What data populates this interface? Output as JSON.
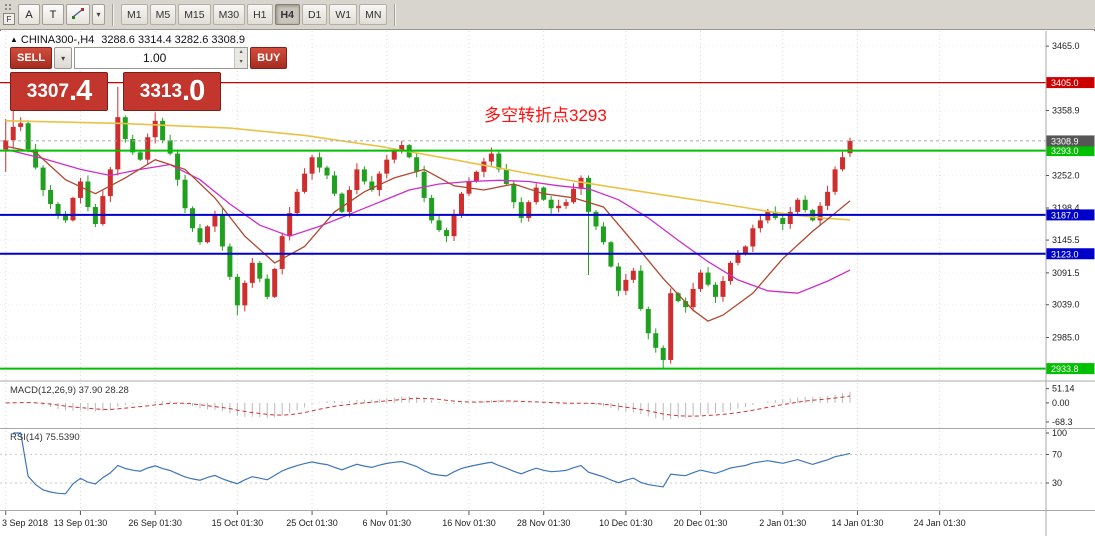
{
  "toolbar": {
    "file_badge": "F",
    "tool_buttons": [
      {
        "label": "A"
      },
      {
        "label": "T"
      }
    ],
    "draw_caret": "▾",
    "timeframes": [
      {
        "label": "M1"
      },
      {
        "label": "M5"
      },
      {
        "label": "M15"
      },
      {
        "label": "M30"
      },
      {
        "label": "H1"
      },
      {
        "label": "H4",
        "active": true
      },
      {
        "label": "D1"
      },
      {
        "label": "W1"
      },
      {
        "label": "MN"
      }
    ]
  },
  "header": {
    "arrow": "▲",
    "symbol_period": "CHINA300-,H4",
    "ohlc": "3288.6 3314.4 3282.6 3308.9"
  },
  "trade_panel": {
    "sell": "SELL",
    "buy": "BUY",
    "volume": "1.00",
    "dropdown": "▾",
    "sell_big": "3307",
    "sell_dec": ".4",
    "buy_big": "3313",
    "buy_dec": ".0"
  },
  "annotation": {
    "text": "多空转折点3293"
  },
  "colors": {
    "up": "#cf2e2e",
    "down": "#1fa11f",
    "annotation": "#ff1010",
    "line_red": "#cc0000",
    "line_green": "#00c000",
    "line_blue": "#0000cc",
    "axis_text": "#1c1c1c",
    "macd_hist": "#b9b9b9",
    "macd_signal": "#d03434",
    "rsi_line": "#3f76b9",
    "ma_yellow": "#e9c348",
    "ma_magenta": "#cc2ecc",
    "ma_brown": "#b0482f"
  },
  "chart_data": {
    "type": "candlestick",
    "symbol": "CHINA300-",
    "timeframe": "H4",
    "ohlc_current": {
      "open": 3288.6,
      "high": 3314.4,
      "low": 3282.6,
      "close": 3308.9
    },
    "price_range": [
      2915,
      3490
    ],
    "num_slots": 140,
    "open_first": 3295,
    "closes": [
      3310,
      3332,
      3338,
      3295,
      3265,
      3228,
      3205,
      3186,
      3178,
      3215,
      3242,
      3200,
      3172,
      3218,
      3262,
      3348,
      3312,
      3290,
      3278,
      3315,
      3342,
      3310,
      3288,
      3245,
      3198,
      3165,
      3142,
      3168,
      3188,
      3135,
      3085,
      3038,
      3075,
      3108,
      3082,
      3052,
      3098,
      3152,
      3190,
      3225,
      3255,
      3282,
      3265,
      3252,
      3222,
      3192,
      3228,
      3262,
      3242,
      3228,
      3255,
      3278,
      3292,
      3302,
      3282,
      3258,
      3215,
      3178,
      3162,
      3152,
      3188,
      3222,
      3242,
      3258,
      3275,
      3288,
      3262,
      3238,
      3208,
      3182,
      3208,
      3232,
      3212,
      3198,
      3202,
      3208,
      3230,
      3248,
      3192,
      3168,
      3142,
      3102,
      3062,
      3080,
      3095,
      3032,
      2992,
      2968,
      2948,
      3058,
      3045,
      3035,
      3065,
      3092,
      3072,
      3052,
      3078,
      3108,
      3122,
      3135,
      3165,
      3178,
      3192,
      3182,
      3172,
      3192,
      3212,
      3195,
      3178,
      3202,
      3225,
      3262,
      3282,
      3308.9
    ],
    "specials": {
      "0": [
        3295,
        3345,
        3258,
        3310
      ],
      "1": [
        3310,
        3368,
        3296,
        3332
      ],
      "15": [
        3262,
        3398,
        3252,
        3348
      ],
      "20": [
        3315,
        3356,
        3305,
        3342
      ],
      "31": [
        3085,
        3090,
        3022,
        3038
      ],
      "78": [
        3248,
        3252,
        3088,
        3192
      ],
      "88": [
        2968,
        2972,
        2933.8,
        2948
      ],
      "89": [
        2948,
        3066,
        2942,
        3058
      ],
      "113": [
        3288.6,
        3314.4,
        3282.6,
        3308.9
      ]
    },
    "y_ticks": [
      {
        "v": 3465.0,
        "t": "3465.0"
      },
      {
        "v": 3358.9,
        "t": "3358.9"
      },
      {
        "v": 3252.0,
        "t": "3252.0"
      },
      {
        "v": 3198.4,
        "t": "3198.4"
      },
      {
        "v": 3145.5,
        "t": "3145.5"
      },
      {
        "v": 3091.5,
        "t": "3091.5"
      },
      {
        "v": 3039.0,
        "t": "3039.0"
      },
      {
        "v": 2985.0,
        "t": "2985.0"
      }
    ],
    "x_ticks": [
      {
        "s": 0,
        "t": "3 Sep 2018"
      },
      {
        "s": 10,
        "t": "13 Sep 01:30"
      },
      {
        "s": 20,
        "t": "26 Sep 01:30"
      },
      {
        "s": 31,
        "t": "15 Oct 01:30"
      },
      {
        "s": 41,
        "t": "25 Oct 01:30"
      },
      {
        "s": 51,
        "t": "6 Nov 01:30"
      },
      {
        "s": 62,
        "t": "16 Nov 01:30"
      },
      {
        "s": 72,
        "t": "28 Nov 01:30"
      },
      {
        "s": 83,
        "t": "10 Dec 01:30"
      },
      {
        "s": 93,
        "t": "20 Dec 01:30"
      },
      {
        "s": 104,
        "t": "2 Jan 01:30"
      },
      {
        "s": 114,
        "t": "14 Jan 01:30"
      },
      {
        "s": 125,
        "t": "24 Jan 01:30"
      }
    ],
    "hlines": [
      {
        "price": 3405.0,
        "label": "3405.0",
        "color": "#cc0000",
        "width": 1.2
      },
      {
        "price": 3293.0,
        "label": "3293.0",
        "color": "#00c000",
        "width": 2
      },
      {
        "price": 3187.0,
        "label": "3187.0",
        "color": "#0000cc",
        "width": 2
      },
      {
        "price": 3123.0,
        "label": "3123.0",
        "color": "#0000cc",
        "width": 2
      },
      {
        "price": 2933.8,
        "label": "2933.8",
        "color": "#00c000",
        "width": 2
      }
    ],
    "current_price": {
      "value": 3308.9,
      "label": "3308.9",
      "tag_color": "#565656"
    },
    "moving_averages": [
      {
        "name": "ma-slow-yellow",
        "color": "#e9c348",
        "width": 1.6,
        "points": [
          [
            0,
            3342
          ],
          [
            15,
            3338
          ],
          [
            30,
            3330
          ],
          [
            40,
            3318
          ],
          [
            50,
            3300
          ],
          [
            60,
            3278
          ],
          [
            70,
            3255
          ],
          [
            80,
            3235
          ],
          [
            88,
            3220
          ],
          [
            96,
            3205
          ],
          [
            102,
            3193
          ],
          [
            106,
            3186
          ],
          [
            110,
            3181
          ],
          [
            113,
            3179
          ]
        ]
      },
      {
        "name": "ma-mid-magenta",
        "color": "#cc2ecc",
        "width": 1.3,
        "points": [
          [
            0,
            3295
          ],
          [
            5,
            3280
          ],
          [
            10,
            3262
          ],
          [
            14,
            3252
          ],
          [
            18,
            3262
          ],
          [
            22,
            3270
          ],
          [
            26,
            3245
          ],
          [
            30,
            3205
          ],
          [
            34,
            3170
          ],
          [
            38,
            3152
          ],
          [
            42,
            3168
          ],
          [
            46,
            3188
          ],
          [
            50,
            3208
          ],
          [
            54,
            3228
          ],
          [
            58,
            3238
          ],
          [
            62,
            3242
          ],
          [
            66,
            3244
          ],
          [
            70,
            3242
          ],
          [
            74,
            3235
          ],
          [
            78,
            3230
          ],
          [
            82,
            3212
          ],
          [
            86,
            3182
          ],
          [
            90,
            3145
          ],
          [
            94,
            3110
          ],
          [
            98,
            3080
          ],
          [
            102,
            3062
          ],
          [
            106,
            3058
          ],
          [
            110,
            3078
          ],
          [
            113,
            3096
          ]
        ]
      },
      {
        "name": "ma-fast-brown",
        "color": "#b0482f",
        "width": 1.3,
        "points": [
          [
            0,
            3300
          ],
          [
            4,
            3290
          ],
          [
            8,
            3245
          ],
          [
            12,
            3222
          ],
          [
            16,
            3248
          ],
          [
            20,
            3278
          ],
          [
            24,
            3262
          ],
          [
            28,
            3215
          ],
          [
            32,
            3152
          ],
          [
            36,
            3108
          ],
          [
            40,
            3135
          ],
          [
            44,
            3192
          ],
          [
            48,
            3225
          ],
          [
            52,
            3248
          ],
          [
            56,
            3262
          ],
          [
            60,
            3235
          ],
          [
            64,
            3228
          ],
          [
            68,
            3238
          ],
          [
            72,
            3222
          ],
          [
            76,
            3215
          ],
          [
            80,
            3200
          ],
          [
            84,
            3142
          ],
          [
            88,
            3082
          ],
          [
            92,
            3030
          ],
          [
            94,
            3012
          ],
          [
            96,
            3022
          ],
          [
            100,
            3058
          ],
          [
            104,
            3115
          ],
          [
            108,
            3160
          ],
          [
            111,
            3190
          ],
          [
            113,
            3210
          ]
        ]
      }
    ],
    "indicators": [
      {
        "name": "MACD",
        "label": "MACD(12,26,9) 37.90 28.28",
        "params": [
          12,
          26,
          9
        ],
        "current_values": [
          37.9,
          28.28
        ],
        "range": [
          -90,
          75
        ],
        "y_labels": [
          {
            "v": 51.14,
            "t": "51.14"
          },
          {
            "v": 0,
            "t": "0.00"
          },
          {
            "v": -68.3,
            "t": "-68.3"
          }
        ]
      },
      {
        "name": "RSI",
        "label": "RSI(14) 75.5390",
        "params": [
          14
        ],
        "current_values": [
          75.539
        ],
        "levels": [
          70,
          30
        ],
        "range": [
          0,
          100
        ],
        "y_labels": [
          {
            "v": 100,
            "t": "100"
          },
          {
            "v": 70,
            "t": "70"
          },
          {
            "v": 30,
            "t": "30"
          }
        ]
      }
    ]
  }
}
